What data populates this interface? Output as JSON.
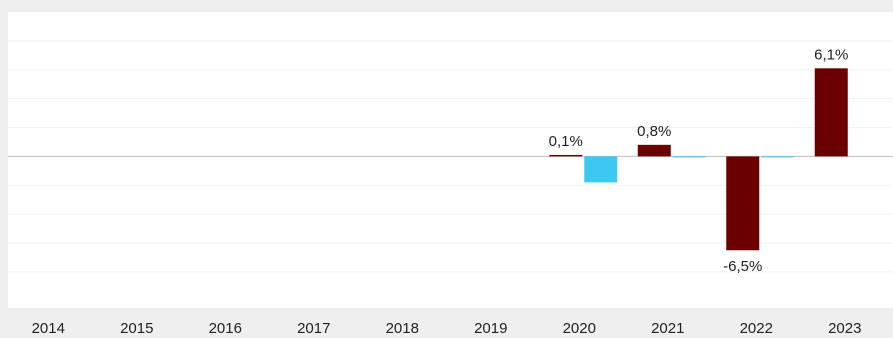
{
  "chart_data": {
    "type": "bar",
    "categories": [
      "2014",
      "2015",
      "2016",
      "2017",
      "2018",
      "2019",
      "2020",
      "2021",
      "2022",
      "2023"
    ],
    "series": [
      {
        "color": "#6b0000",
        "values": [
          null,
          null,
          null,
          null,
          null,
          null,
          0.1,
          0.8,
          -6.5,
          6.1
        ],
        "data_labels": [
          "",
          "",
          "",
          "",
          "",
          "",
          "0,1%",
          "0,8%",
          "-6,5%",
          "6,1%"
        ]
      },
      {
        "color": "#3cc8f0",
        "values": [
          null,
          null,
          null,
          null,
          null,
          null,
          -1.8,
          0.0,
          0.0,
          null
        ],
        "data_labels": [
          "",
          "",
          "",
          "",
          "",
          "",
          "",
          "",
          "",
          ""
        ]
      }
    ],
    "ylim": [
      -10.5,
      10.0
    ],
    "grid": true,
    "legend": "none",
    "xlabel": "",
    "ylabel": ""
  }
}
